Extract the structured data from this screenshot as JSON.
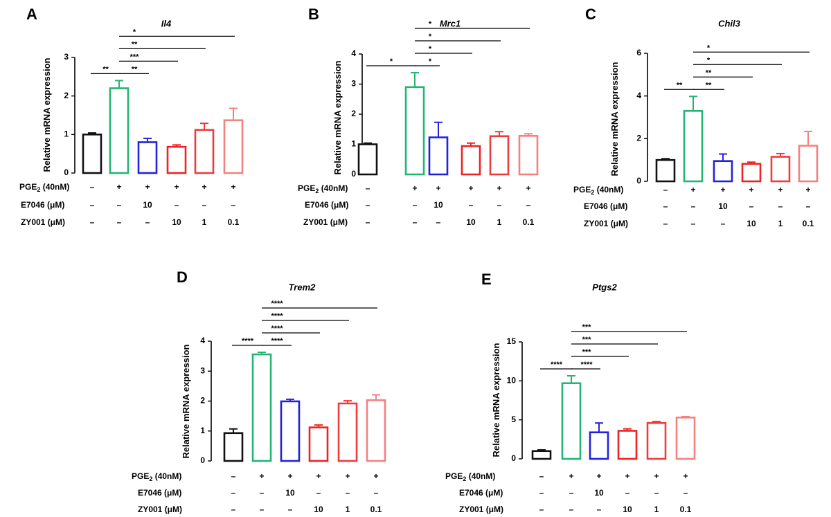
{
  "figure": {
    "y_axis_label": "Relative  mRNA expression",
    "condition_rows": [
      {
        "label": "PGE2  (40nM)",
        "label_main": "PGE",
        "label_sub": "2",
        "label_rest": "  (40nM)",
        "values": [
          "–",
          "+",
          "+",
          "+",
          "+",
          "+"
        ]
      },
      {
        "label": "E7046 (μM)",
        "values": [
          "–",
          "–",
          "10",
          "–",
          "–",
          "–"
        ]
      },
      {
        "label": "ZY001 (μM)",
        "values": [
          "–",
          "–",
          "–",
          "10",
          "1",
          "0.1"
        ]
      }
    ],
    "bar_colors": [
      "#111111",
      "#22b573",
      "#2222dd",
      "#ee2222",
      "#ee3b3b",
      "#f58080"
    ]
  },
  "chart_data": [
    {
      "panel": "A",
      "type": "bar",
      "title": "Il4",
      "ylabel": "Relative  mRNA expression",
      "ylim": [
        0,
        3
      ],
      "yticks": [
        "0",
        "1",
        "2",
        "3"
      ],
      "values": [
        1.0,
        2.2,
        0.8,
        0.68,
        1.12,
        1.37
      ],
      "errors": [
        0.04,
        0.2,
        0.1,
        0.05,
        0.17,
        0.31
      ],
      "significance": [
        {
          "from": 0,
          "to": 1,
          "label": "**"
        },
        {
          "from": 1,
          "to": 2,
          "label": "**"
        },
        {
          "from": 1,
          "to": 3,
          "label": "***"
        },
        {
          "from": 1,
          "to": 4,
          "label": "**"
        },
        {
          "from": 1,
          "to": 5,
          "label": "*"
        }
      ]
    },
    {
      "panel": "B",
      "type": "bar",
      "title": "Mrc1",
      "ylabel": "Relative  mRNA expression",
      "ylim": [
        0,
        4
      ],
      "yticks": [
        "0",
        "1",
        "2",
        "3",
        "4"
      ],
      "values": [
        1.0,
        2.9,
        1.23,
        0.94,
        1.27,
        1.28
      ],
      "errors": [
        0.04,
        0.48,
        0.5,
        0.1,
        0.15,
        0.07
      ],
      "significance": [
        {
          "from": 0,
          "to": 1,
          "label": "*"
        },
        {
          "from": 1,
          "to": 2,
          "label": "*"
        },
        {
          "from": 1,
          "to": 3,
          "label": "*"
        },
        {
          "from": 1,
          "to": 4,
          "label": "*"
        },
        {
          "from": 1,
          "to": 5,
          "label": "*"
        }
      ]
    },
    {
      "panel": "C",
      "type": "bar",
      "title": "Chil3",
      "ylabel": "Relative  mRNA expression",
      "ylim": [
        0,
        6
      ],
      "yticks": [
        "0",
        "2",
        "4",
        "6"
      ],
      "values": [
        1.0,
        3.3,
        0.95,
        0.82,
        1.15,
        1.67
      ],
      "errors": [
        0.06,
        0.68,
        0.33,
        0.08,
        0.15,
        0.67
      ],
      "significance": [
        {
          "from": 0,
          "to": 1,
          "label": "**"
        },
        {
          "from": 1,
          "to": 2,
          "label": "**"
        },
        {
          "from": 1,
          "to": 3,
          "label": "**"
        },
        {
          "from": 1,
          "to": 4,
          "label": "*"
        },
        {
          "from": 1,
          "to": 5,
          "label": "*"
        }
      ]
    },
    {
      "panel": "D",
      "type": "bar",
      "title": "Trem2",
      "ylabel": "Relative  mRNA expression",
      "ylim": [
        0,
        4
      ],
      "yticks": [
        "0",
        "1",
        "2",
        "3",
        "4"
      ],
      "values": [
        0.93,
        3.56,
        1.99,
        1.12,
        1.92,
        2.03
      ],
      "errors": [
        0.14,
        0.07,
        0.07,
        0.08,
        0.09,
        0.18
      ],
      "significance": [
        {
          "from": 0,
          "to": 1,
          "label": "****"
        },
        {
          "from": 1,
          "to": 2,
          "label": "****"
        },
        {
          "from": 1,
          "to": 3,
          "label": "****"
        },
        {
          "from": 1,
          "to": 4,
          "label": "****"
        },
        {
          "from": 1,
          "to": 5,
          "label": "****"
        }
      ]
    },
    {
      "panel": "E",
      "type": "bar",
      "title": "Ptgs2",
      "ylabel": "Relative  mRNA expression",
      "ylim": [
        0,
        15
      ],
      "yticks": [
        "0",
        "5",
        "10",
        "15"
      ],
      "values": [
        1.0,
        9.7,
        3.4,
        3.6,
        4.6,
        5.3
      ],
      "errors": [
        0.15,
        0.95,
        1.2,
        0.25,
        0.2,
        0.12
      ],
      "significance": [
        {
          "from": 0,
          "to": 1,
          "label": "****"
        },
        {
          "from": 1,
          "to": 2,
          "label": "****"
        },
        {
          "from": 1,
          "to": 3,
          "label": "***"
        },
        {
          "from": 1,
          "to": 4,
          "label": "***"
        },
        {
          "from": 1,
          "to": 5,
          "label": "***"
        }
      ]
    }
  ]
}
